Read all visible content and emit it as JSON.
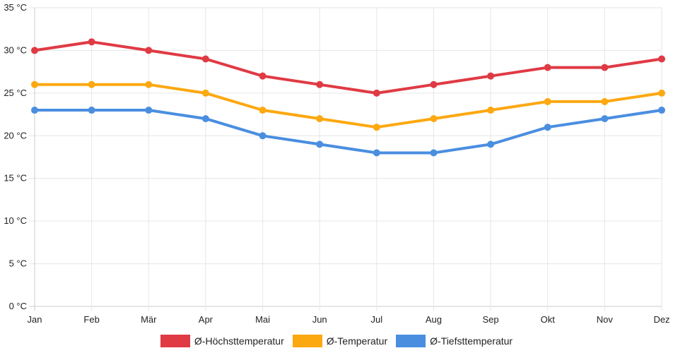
{
  "chart_data": {
    "type": "line",
    "categories": [
      "Jan",
      "Feb",
      "Mär",
      "Apr",
      "Mai",
      "Jun",
      "Jul",
      "Aug",
      "Sep",
      "Okt",
      "Nov",
      "Dez"
    ],
    "ylim": [
      0,
      35
    ],
    "yticks": [
      "0 °C",
      "5 °C",
      "10 °C",
      "15 °C",
      "20 °C",
      "25 °C",
      "30 °C",
      "35 °C"
    ],
    "grid": true,
    "legend_position": "bottom",
    "series": [
      {
        "name": "Ø-Höchsttemperatur",
        "color": "#e03a44",
        "values": [
          30,
          31,
          30,
          29,
          27,
          26,
          25,
          26,
          27,
          28,
          28,
          29
        ]
      },
      {
        "name": "Ø-Temperatur",
        "color": "#fca811",
        "values": [
          26,
          26,
          26,
          25,
          23,
          22,
          21,
          22,
          23,
          24,
          24,
          25
        ]
      },
      {
        "name": "Ø-Tiefsttemperatur",
        "color": "#4a8ee0",
        "values": [
          23,
          23,
          23,
          22,
          20,
          19,
          18,
          18,
          19,
          21,
          22,
          23
        ]
      }
    ]
  }
}
